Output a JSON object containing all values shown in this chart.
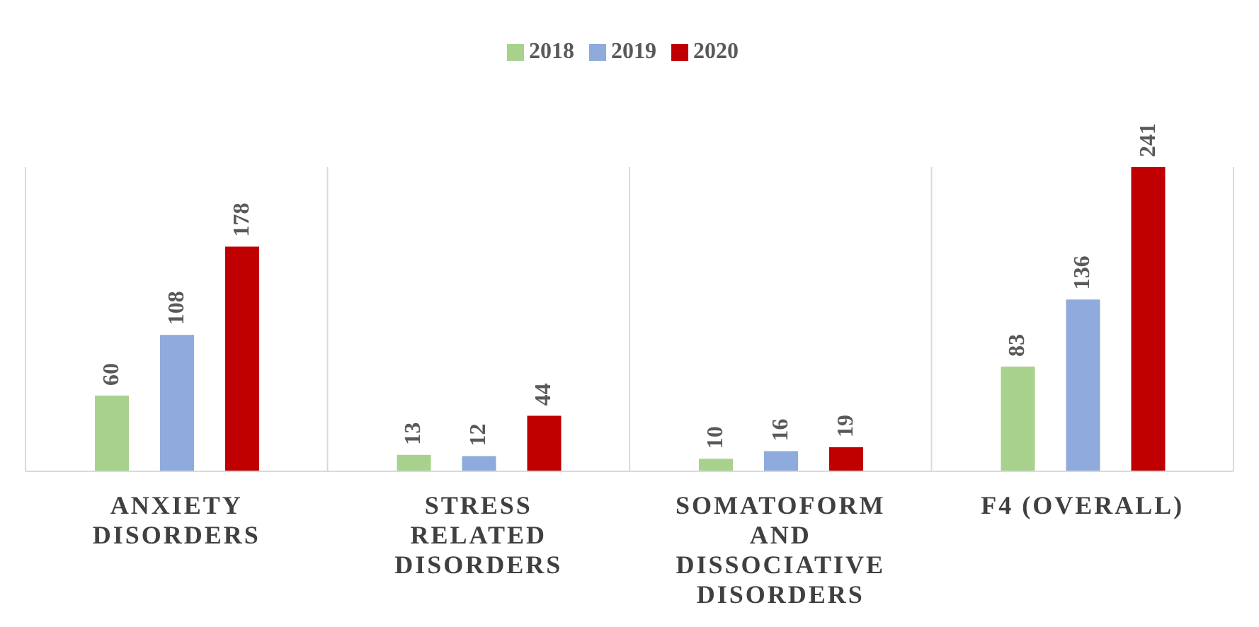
{
  "chart_data": {
    "type": "bar",
    "categories": [
      "ANXIETY DISORDERS",
      "STRESS RELATED DISORDERS",
      "SOMATOFORM AND DISSOCIATIVE DISORDERS",
      "F4 (OVERALL)"
    ],
    "series": [
      {
        "name": "2018",
        "color": "#a9d18e",
        "values": [
          60,
          13,
          10,
          83
        ]
      },
      {
        "name": "2019",
        "color": "#8faadc",
        "values": [
          108,
          12,
          16,
          136
        ]
      },
      {
        "name": "2020",
        "color": "#c00000",
        "values": [
          178,
          44,
          19,
          241
        ]
      }
    ],
    "data_labels": true,
    "legend": "top",
    "grid": "x"
  }
}
